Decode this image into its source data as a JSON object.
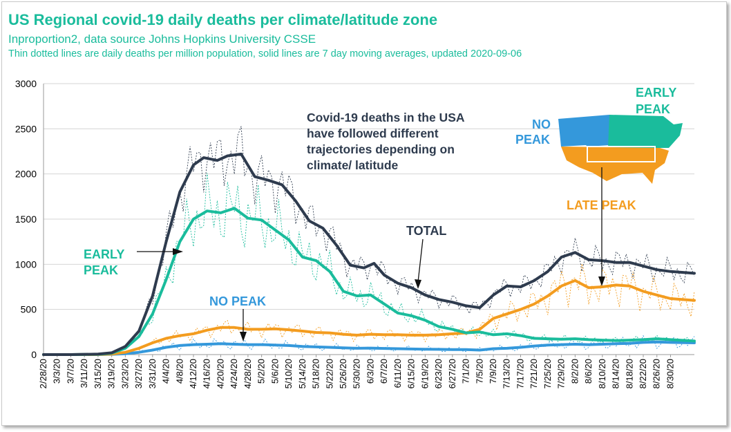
{
  "header": {
    "title": "US Regional covid-19 daily deaths per climate/latitude zone",
    "subtitle": "Inproportion2, data source Johns Hopkins University CSSE",
    "note": "Thin dotted lines are daily deaths per million population, solid lines are 7 day moving averages, updated 2020-09-06"
  },
  "annotations": {
    "early_peak_left": [
      "EARLY",
      "PEAK"
    ],
    "no_peak_mid": "NO PEAK",
    "total": "TOTAL",
    "late_peak": "LATE PEAK",
    "map_no_peak": [
      "NO",
      "PEAK"
    ],
    "map_early_peak": [
      "EARLY",
      "PEAK"
    ],
    "trajectories": [
      "Covid-19 deaths in the USA",
      "have followed different",
      "trajectories depending on",
      "climate/ latitude"
    ]
  },
  "colors": {
    "total": "#2e3b4e",
    "early_peak": "#1abc9c",
    "late_peak": "#f39c1f",
    "no_peak": "#3498db",
    "grid": "#d4d4d4"
  },
  "chart_data": {
    "type": "line",
    "title": "US Regional covid-19 daily deaths per climate/latitude zone",
    "xlabel": "",
    "ylabel": "",
    "ylim": [
      0,
      3000
    ],
    "yticks": [
      0,
      500,
      1000,
      1500,
      2000,
      2500,
      3000
    ],
    "grid": "horizontal",
    "x_start": "2/28/20",
    "x_end": "9/6/20",
    "xticks": [
      "2/28/20",
      "3/3/20",
      "3/7/20",
      "3/11/20",
      "3/15/20",
      "3/19/20",
      "3/23/20",
      "3/27/20",
      "3/31/20",
      "4/4/20",
      "4/8/20",
      "4/12/20",
      "4/16/20",
      "4/20/20",
      "4/24/20",
      "4/28/20",
      "5/2/20",
      "5/6/20",
      "5/10/20",
      "5/14/20",
      "5/18/20",
      "5/22/20",
      "5/26/20",
      "5/30/20",
      "6/3/20",
      "6/7/20",
      "6/11/20",
      "6/15/20",
      "6/19/20",
      "6/23/20",
      "6/27/20",
      "7/1/20",
      "7/5/20",
      "7/9/20",
      "7/13/20",
      "7/17/20",
      "7/21/20",
      "7/25/20",
      "7/29/20",
      "8/2/20",
      "8/6/20",
      "8/10/20",
      "8/14/20",
      "8/18/20",
      "8/22/20",
      "8/26/20",
      "8/30/20"
    ],
    "series": [
      {
        "name": "TOTAL",
        "color": "#2e3b4e",
        "points": [
          [
            "2/28/20",
            0
          ],
          [
            "3/7/20",
            0
          ],
          [
            "3/15/20",
            5
          ],
          [
            "3/19/20",
            20
          ],
          [
            "3/23/20",
            90
          ],
          [
            "3/27/20",
            260
          ],
          [
            "3/31/20",
            650
          ],
          [
            "4/4/20",
            1250
          ],
          [
            "4/8/20",
            1800
          ],
          [
            "4/12/20",
            2100
          ],
          [
            "4/15/20",
            2180
          ],
          [
            "4/19/20",
            2150
          ],
          [
            "4/22/20",
            2200
          ],
          [
            "4/26/20",
            2220
          ],
          [
            "4/30/20",
            1970
          ],
          [
            "5/4/20",
            1930
          ],
          [
            "5/8/20",
            1880
          ],
          [
            "5/12/20",
            1700
          ],
          [
            "5/16/20",
            1480
          ],
          [
            "5/20/20",
            1400
          ],
          [
            "5/24/20",
            1210
          ],
          [
            "5/28/20",
            990
          ],
          [
            "6/1/20",
            960
          ],
          [
            "6/4/20",
            1010
          ],
          [
            "6/7/20",
            880
          ],
          [
            "6/11/20",
            790
          ],
          [
            "6/15/20",
            740
          ],
          [
            "6/19/20",
            660
          ],
          [
            "6/23/20",
            610
          ],
          [
            "6/27/20",
            580
          ],
          [
            "7/1/20",
            540
          ],
          [
            "7/5/20",
            520
          ],
          [
            "7/9/20",
            660
          ],
          [
            "7/13/20",
            760
          ],
          [
            "7/17/20",
            750
          ],
          [
            "7/21/20",
            820
          ],
          [
            "7/25/20",
            920
          ],
          [
            "7/29/20",
            1080
          ],
          [
            "8/2/20",
            1130
          ],
          [
            "8/6/20",
            1050
          ],
          [
            "8/10/20",
            1040
          ],
          [
            "8/14/20",
            1020
          ],
          [
            "8/18/20",
            1020
          ],
          [
            "8/22/20",
            980
          ],
          [
            "8/26/20",
            940
          ],
          [
            "8/30/20",
            920
          ],
          [
            "9/6/20",
            900
          ]
        ]
      },
      {
        "name": "EARLY PEAK",
        "color": "#1abc9c",
        "points": [
          [
            "2/28/20",
            0
          ],
          [
            "3/7/20",
            0
          ],
          [
            "3/15/20",
            3
          ],
          [
            "3/19/20",
            15
          ],
          [
            "3/23/20",
            70
          ],
          [
            "3/27/20",
            200
          ],
          [
            "3/31/20",
            450
          ],
          [
            "4/4/20",
            830
          ],
          [
            "4/8/20",
            1250
          ],
          [
            "4/12/20",
            1500
          ],
          [
            "4/16/20",
            1590
          ],
          [
            "4/20/20",
            1570
          ],
          [
            "4/24/20",
            1620
          ],
          [
            "4/28/20",
            1510
          ],
          [
            "5/2/20",
            1490
          ],
          [
            "5/6/20",
            1380
          ],
          [
            "5/10/20",
            1270
          ],
          [
            "5/14/20",
            1080
          ],
          [
            "5/18/20",
            1040
          ],
          [
            "5/22/20",
            920
          ],
          [
            "5/26/20",
            700
          ],
          [
            "5/30/20",
            650
          ],
          [
            "6/3/20",
            660
          ],
          [
            "6/7/20",
            560
          ],
          [
            "6/11/20",
            460
          ],
          [
            "6/15/20",
            430
          ],
          [
            "6/19/20",
            380
          ],
          [
            "6/23/20",
            310
          ],
          [
            "6/27/20",
            280
          ],
          [
            "7/1/20",
            240
          ],
          [
            "7/5/20",
            250
          ],
          [
            "7/9/20",
            220
          ],
          [
            "7/13/20",
            230
          ],
          [
            "7/17/20",
            210
          ],
          [
            "7/21/20",
            180
          ],
          [
            "7/25/20",
            175
          ],
          [
            "7/29/20",
            170
          ],
          [
            "8/2/20",
            175
          ],
          [
            "8/6/20",
            165
          ],
          [
            "8/10/20",
            160
          ],
          [
            "8/14/20",
            155
          ],
          [
            "8/18/20",
            160
          ],
          [
            "8/22/20",
            165
          ],
          [
            "8/26/20",
            175
          ],
          [
            "8/30/20",
            165
          ],
          [
            "9/6/20",
            150
          ]
        ]
      },
      {
        "name": "LATE PEAK",
        "color": "#f39c1f",
        "points": [
          [
            "2/28/20",
            0
          ],
          [
            "3/7/20",
            0
          ],
          [
            "3/15/20",
            1
          ],
          [
            "3/19/20",
            5
          ],
          [
            "3/23/20",
            25
          ],
          [
            "3/27/20",
            70
          ],
          [
            "3/31/20",
            130
          ],
          [
            "4/4/20",
            180
          ],
          [
            "4/8/20",
            210
          ],
          [
            "4/12/20",
            230
          ],
          [
            "4/16/20",
            270
          ],
          [
            "4/20/20",
            300
          ],
          [
            "4/24/20",
            300
          ],
          [
            "4/28/20",
            280
          ],
          [
            "5/2/20",
            280
          ],
          [
            "5/6/20",
            285
          ],
          [
            "5/10/20",
            275
          ],
          [
            "5/14/20",
            260
          ],
          [
            "5/18/20",
            245
          ],
          [
            "5/22/20",
            240
          ],
          [
            "5/26/20",
            225
          ],
          [
            "5/30/20",
            215
          ],
          [
            "6/3/20",
            225
          ],
          [
            "6/7/20",
            220
          ],
          [
            "6/11/20",
            220
          ],
          [
            "6/15/20",
            215
          ],
          [
            "6/19/20",
            215
          ],
          [
            "6/23/20",
            220
          ],
          [
            "6/27/20",
            230
          ],
          [
            "7/1/20",
            240
          ],
          [
            "7/5/20",
            280
          ],
          [
            "7/9/20",
            400
          ],
          [
            "7/13/20",
            450
          ],
          [
            "7/17/20",
            500
          ],
          [
            "7/21/20",
            560
          ],
          [
            "7/25/20",
            650
          ],
          [
            "7/29/20",
            760
          ],
          [
            "8/2/20",
            820
          ],
          [
            "8/6/20",
            740
          ],
          [
            "8/10/20",
            750
          ],
          [
            "8/14/20",
            770
          ],
          [
            "8/18/20",
            760
          ],
          [
            "8/22/20",
            700
          ],
          [
            "8/26/20",
            660
          ],
          [
            "8/30/20",
            620
          ],
          [
            "9/6/20",
            600
          ]
        ]
      },
      {
        "name": "NO PEAK",
        "color": "#3498db",
        "points": [
          [
            "2/28/20",
            0
          ],
          [
            "3/7/20",
            0
          ],
          [
            "3/15/20",
            1
          ],
          [
            "3/19/20",
            3
          ],
          [
            "3/23/20",
            10
          ],
          [
            "3/27/20",
            25
          ],
          [
            "3/31/20",
            50
          ],
          [
            "4/4/20",
            80
          ],
          [
            "4/8/20",
            100
          ],
          [
            "4/12/20",
            110
          ],
          [
            "4/16/20",
            115
          ],
          [
            "4/20/20",
            120
          ],
          [
            "4/24/20",
            115
          ],
          [
            "4/28/20",
            110
          ],
          [
            "5/2/20",
            110
          ],
          [
            "5/6/20",
            105
          ],
          [
            "5/10/20",
            100
          ],
          [
            "5/14/20",
            90
          ],
          [
            "5/18/20",
            85
          ],
          [
            "5/22/20",
            80
          ],
          [
            "5/26/20",
            75
          ],
          [
            "5/30/20",
            70
          ],
          [
            "6/3/20",
            72
          ],
          [
            "6/7/20",
            68
          ],
          [
            "6/11/20",
            65
          ],
          [
            "6/15/20",
            62
          ],
          [
            "6/19/20",
            60
          ],
          [
            "6/23/20",
            58
          ],
          [
            "6/27/20",
            55
          ],
          [
            "7/1/20",
            55
          ],
          [
            "7/5/20",
            50
          ],
          [
            "7/9/20",
            65
          ],
          [
            "7/13/20",
            70
          ],
          [
            "7/17/20",
            80
          ],
          [
            "7/21/20",
            95
          ],
          [
            "7/25/20",
            105
          ],
          [
            "7/29/20",
            110
          ],
          [
            "8/2/20",
            115
          ],
          [
            "8/6/20",
            110
          ],
          [
            "8/10/20",
            115
          ],
          [
            "8/14/20",
            120
          ],
          [
            "8/18/20",
            125
          ],
          [
            "8/22/20",
            135
          ],
          [
            "8/26/20",
            140
          ],
          [
            "8/30/20",
            135
          ],
          [
            "9/6/20",
            130
          ]
        ]
      }
    ]
  }
}
